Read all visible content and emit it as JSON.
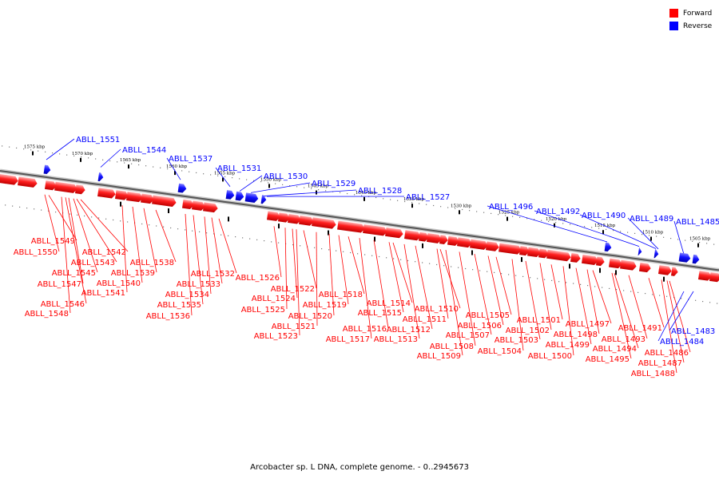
{
  "legend": {
    "forward_label": "Forward",
    "forward_color": "#ff0000",
    "reverse_label": "Reverse",
    "reverse_color": "#0000ff"
  },
  "caption": "Arcobacter sp. L DNA, complete genome. - 0..2945673",
  "ruler": {
    "ticks": [
      {
        "label": "1575 kbp",
        "kbp": 1575
      },
      {
        "label": "1570 kbp",
        "kbp": 1570
      },
      {
        "label": "1565 kbp",
        "kbp": 1565
      },
      {
        "label": "1560 kbp",
        "kbp": 1560
      },
      {
        "label": "1555 kbp",
        "kbp": 1555
      },
      {
        "label": "1550 kbp",
        "kbp": 1550
      },
      {
        "label": "1545 kbp",
        "kbp": 1545
      },
      {
        "label": "1540 kbp",
        "kbp": 1540
      },
      {
        "label": "1535 kbp",
        "kbp": 1535
      },
      {
        "label": "1530 kbp",
        "kbp": 1530
      },
      {
        "label": "1525 kbp",
        "kbp": 1525
      },
      {
        "label": "1520 kbp",
        "kbp": 1520
      },
      {
        "label": "1515 kbp",
        "kbp": 1515
      },
      {
        "label": "1510 kbp",
        "kbp": 1510
      },
      {
        "label": "1505 kbp",
        "kbp": 1505
      }
    ]
  },
  "forward_genes": [
    "ABLL_1549",
    "ABLL_1550",
    "ABLL_1542",
    "ABLL_1543",
    "ABLL_1545",
    "ABLL_1538",
    "ABLL_1539",
    "ABLL_1547",
    "ABLL_1540",
    "ABLL_1541",
    "ABLL_1546",
    "ABLL_1548",
    "ABLL_1532",
    "ABLL_1533",
    "ABLL_1534",
    "ABLL_1535",
    "ABLL_1536",
    "ABLL_1526",
    "ABLL_1522",
    "ABLL_1524",
    "ABLL_1525",
    "ABLL_1518",
    "ABLL_1519",
    "ABLL_1520",
    "ABLL_1521",
    "ABLL_1523",
    "ABLL_1514",
    "ABLL_1515",
    "ABLL_1516",
    "ABLL_1517",
    "ABLL_1512",
    "ABLL_1513",
    "ABLL_1510",
    "ABLL_1511",
    "ABLL_1508",
    "ABLL_1509",
    "ABLL_1507",
    "ABLL_1505",
    "ABLL_1506",
    "ABLL_1504",
    "ABLL_1503",
    "ABLL_1502",
    "ABLL_1501",
    "ABLL_1500",
    "ABLL_1499",
    "ABLL_1498",
    "ABLL_1497",
    "ABLL_1493",
    "ABLL_1494",
    "ABLL_1495",
    "ABLL_1491",
    "ABLL_1486",
    "ABLL_1487",
    "ABLL_1488"
  ],
  "reverse_genes": [
    "ABLL_1551",
    "ABLL_1544",
    "ABLL_1537",
    "ABLL_1531",
    "ABLL_1530",
    "ABLL_1529",
    "ABLL_1528",
    "ABLL_1527",
    "ABLL_1496",
    "ABLL_1492",
    "ABLL_1490",
    "ABLL_1489",
    "ABLL_1485",
    "ABLL_1483",
    "ABLL_1484"
  ]
}
